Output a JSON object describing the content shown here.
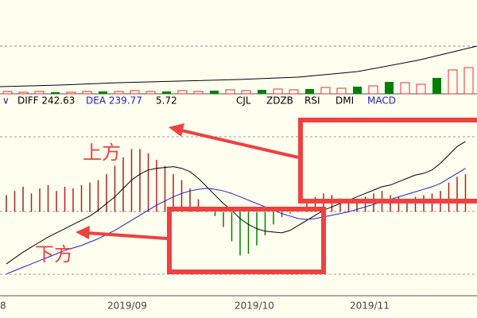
{
  "chart_data": [
    {
      "type": "line",
      "values": [
        9,
        11,
        14,
        16,
        18,
        21,
        28,
        42,
        60
      ],
      "color": "#000000",
      "ylim": [
        0,
        118
      ],
      "volume_up": [
        3,
        2,
        3,
        null,
        2,
        3,
        null,
        3,
        4,
        3,
        null,
        4,
        3,
        null,
        5,
        4,
        null,
        6,
        5,
        null,
        8,
        7,
        null,
        10,
        null,
        14,
        12,
        null,
        30,
        33
      ],
      "volume_down": [
        null,
        null,
        null,
        2,
        null,
        null,
        3,
        null,
        null,
        null,
        3,
        null,
        null,
        4,
        null,
        null,
        5,
        null,
        null,
        6,
        null,
        null,
        9,
        null,
        15,
        null,
        null,
        20,
        null,
        null
      ],
      "volume_ylim": [
        0,
        40
      ],
      "up_color": "#e03030",
      "down_color": "#008000"
    },
    {
      "type": "macd",
      "values": [
        20,
        25,
        30,
        22,
        28,
        32,
        25,
        30,
        28,
        32,
        35,
        38,
        45,
        55,
        65,
        75,
        75,
        70,
        62,
        55,
        45,
        38,
        28,
        15,
        3,
        -5,
        -18,
        -35,
        -52,
        -50,
        -40,
        -28,
        -15,
        -6,
        -2,
        2,
        12,
        18,
        22,
        20,
        16,
        12,
        14,
        18,
        22,
        25,
        20,
        18,
        15,
        18,
        20,
        22,
        25,
        35,
        42,
        45
      ],
      "series": [
        {
          "color": "#000000",
          "values": [
            -62,
            -55,
            -48,
            -42,
            -36,
            -30,
            -25,
            -20,
            -15,
            -10,
            -5,
            2,
            10,
            18,
            28,
            38,
            45,
            50,
            52,
            53,
            54,
            52,
            48,
            40,
            30,
            20,
            10,
            2,
            -8,
            -15,
            -20,
            -23,
            -24,
            -25,
            -22,
            -16,
            -10,
            -4,
            2,
            6,
            10,
            14,
            18,
            22,
            26,
            30,
            32,
            36,
            40,
            44,
            46,
            50,
            58,
            68,
            78,
            84
          ]
        },
        {
          "color": "#2020c0",
          "values": [
            -74,
            -70,
            -66,
            -62,
            -58,
            -54,
            -50,
            -46,
            -43,
            -40,
            -36,
            -32,
            -27,
            -22,
            -16,
            -10,
            -4,
            2,
            8,
            13,
            18,
            22,
            25,
            27,
            28,
            27,
            25,
            22,
            18,
            14,
            10,
            6,
            2,
            -2,
            -5,
            -8,
            -9,
            -8,
            -6,
            -4,
            -2,
            0,
            3,
            6,
            9,
            12,
            15,
            18,
            21,
            24,
            27,
            30,
            34,
            40,
            46,
            52
          ]
        }
      ],
      "ylim": [
        -100,
        120
      ],
      "up_color": "#b02020",
      "down_color": "#008000"
    }
  ],
  "indicator_bar": {
    "toggle": "∨",
    "diff": "DIFF 242.63",
    "dea": "DEA 239.77",
    "macd_value": "5.72",
    "tabs": [
      "CJL",
      "ZDZB",
      "RSI",
      "DMI",
      "MACD"
    ]
  },
  "annotations": {
    "upper": "上方",
    "lower": "下方"
  },
  "date_labels": [
    "8",
    "2019/09",
    "2019/10",
    "2019/11"
  ]
}
